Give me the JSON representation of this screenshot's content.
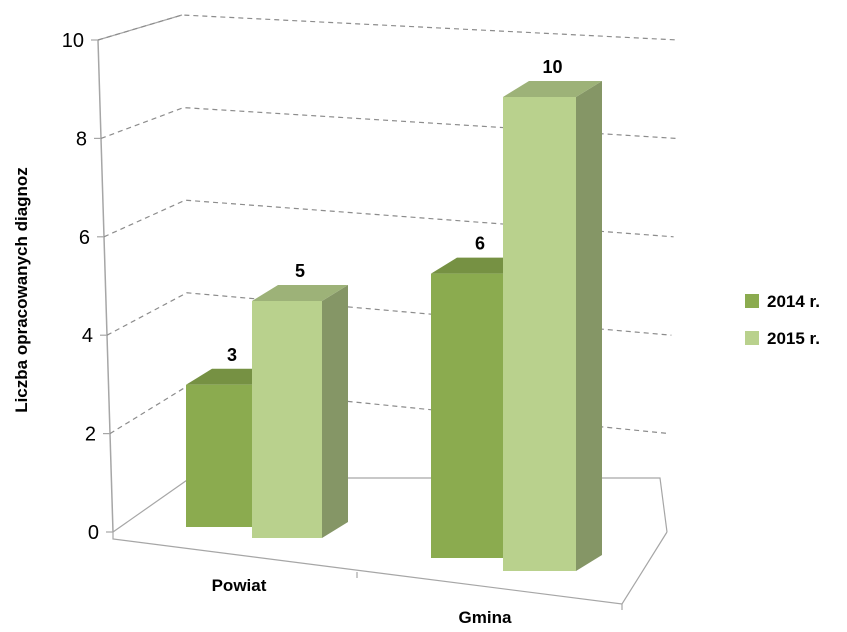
{
  "chart_data": {
    "type": "bar",
    "title": "",
    "xlabel": "",
    "ylabel": "Liczba opracowanych diagnoz",
    "ylim": [
      0,
      10
    ],
    "yticks": [
      0,
      2,
      4,
      6,
      8,
      10
    ],
    "categories": [
      "Powiat",
      "Gmina"
    ],
    "series": [
      {
        "name": "2014 r.",
        "values": [
          3,
          6
        ],
        "color": "#8bab4f"
      },
      {
        "name": "2015 r.",
        "values": [
          5,
          10
        ],
        "color": "#b9d18d"
      }
    ],
    "legend_position": "right",
    "grid": true,
    "style": "3d-clustered-column"
  }
}
